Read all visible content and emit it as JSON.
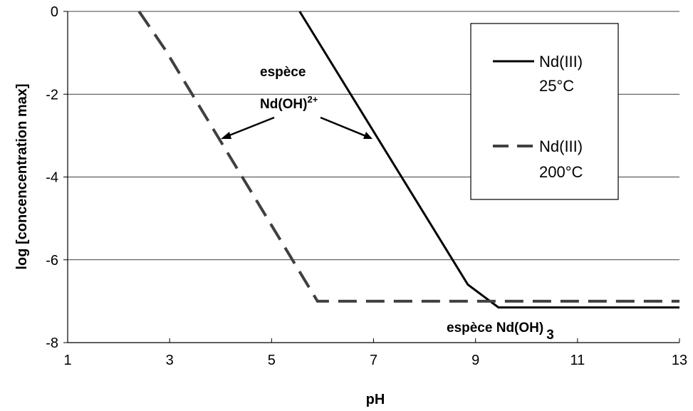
{
  "chart_data": {
    "type": "line",
    "xlabel": "pH",
    "ylabel": "log [concencentration max]",
    "xlim": [
      1,
      13
    ],
    "ylim": [
      -8,
      0
    ],
    "xticks": [
      "1",
      "3",
      "5",
      "7",
      "9",
      "11",
      "13"
    ],
    "yticks": [
      "0",
      "-2",
      "-4",
      "-6",
      "-8"
    ],
    "grid": "horizontal",
    "legend_position": "top-right",
    "series": [
      {
        "name": "Nd(III) 25°C",
        "label_lines": [
          "Nd(III)",
          "25°C"
        ],
        "style": "solid",
        "color": "#000000",
        "x": [
          5.55,
          8.85,
          9.45,
          13
        ],
        "y": [
          0,
          -6.6,
          -7.15,
          -7.15
        ]
      },
      {
        "name": "Nd(III) 200°C",
        "label_lines": [
          "Nd(III)",
          "200°C"
        ],
        "style": "dashed",
        "color": "#404040",
        "x": [
          2.4,
          2.9,
          5.9,
          13
        ],
        "y": [
          0,
          -0.9,
          -7.0,
          -7.0
        ]
      }
    ],
    "annotations": {
      "hydroxide_top_line1": "espèce",
      "hydroxide_top_line2": "Nd(OH)",
      "hydroxide_top_sup": "2+",
      "hydroxide_bottom": "espèce Nd(OH)",
      "hydroxide_bottom_sub": "3"
    }
  }
}
